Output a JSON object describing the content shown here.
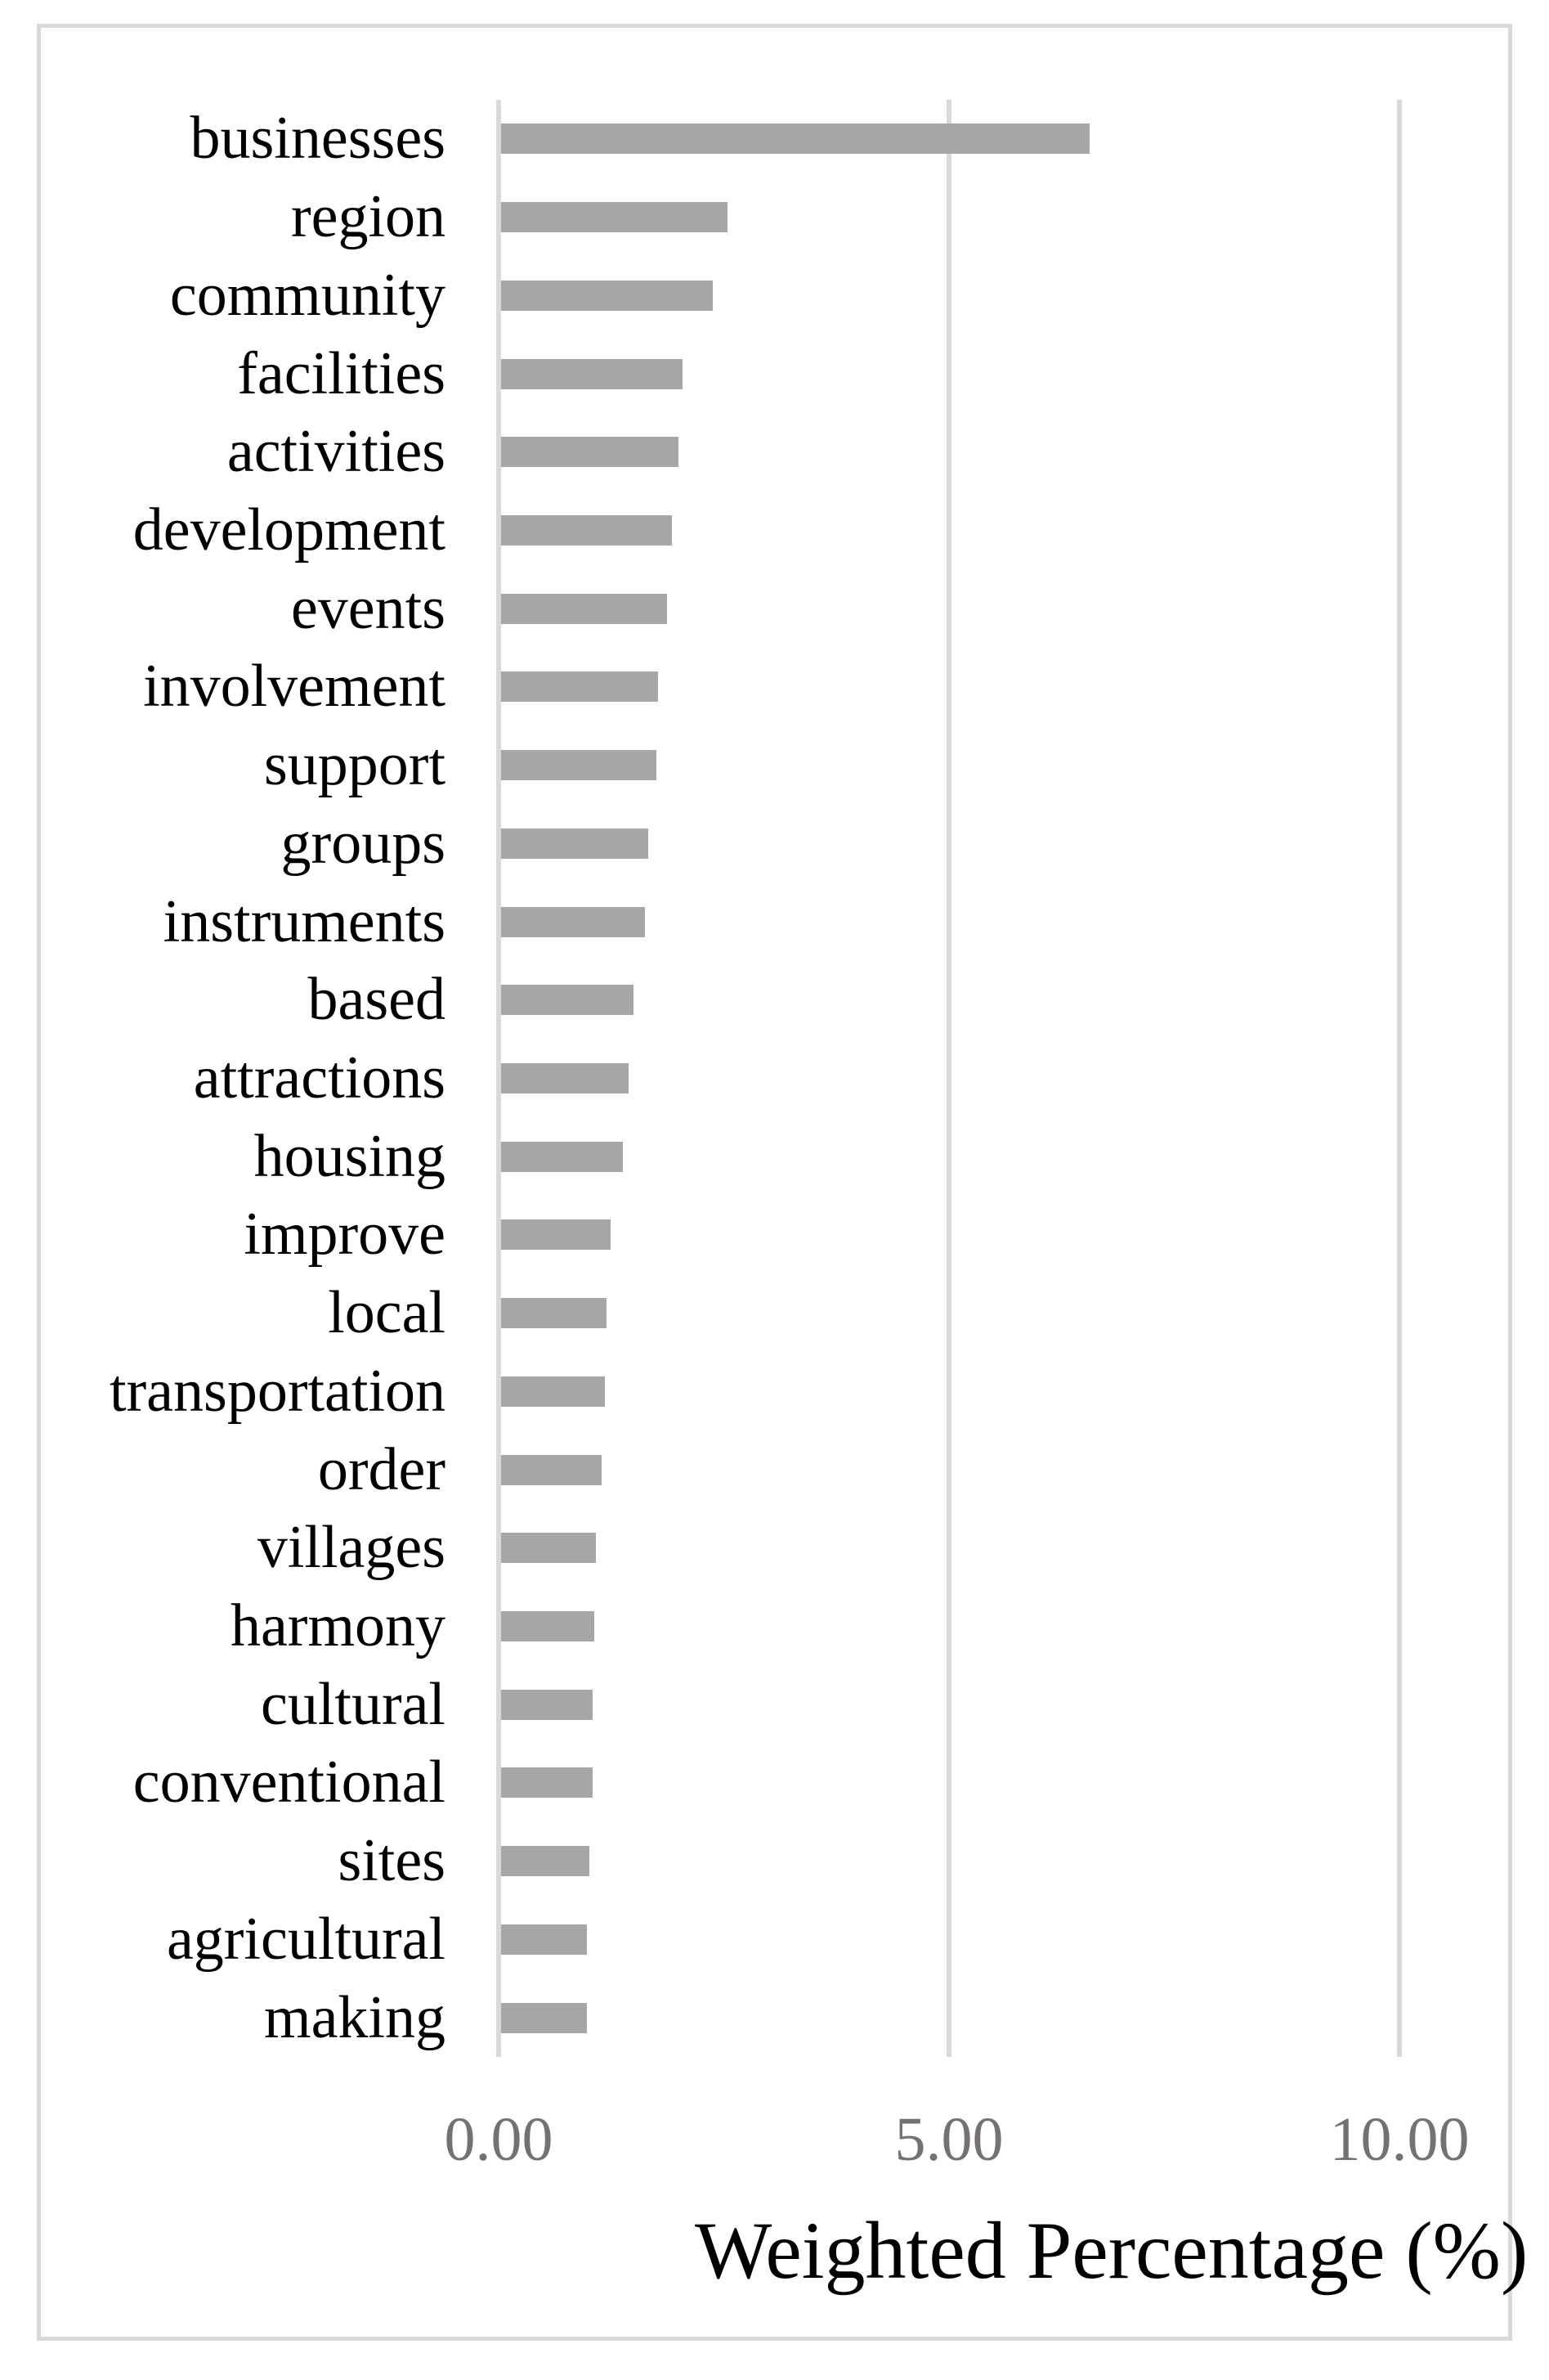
{
  "chart_data": {
    "type": "bar",
    "orientation": "horizontal",
    "title": "",
    "xlabel": "Weighted Percentage (%)",
    "ylabel": "",
    "categories": [
      "businesses",
      "region",
      "community",
      "facilities",
      "activities",
      "development",
      "events",
      "involvement",
      "support",
      "groups",
      "instruments",
      "based",
      "attractions",
      "housing",
      "improve",
      "local",
      "transportation",
      "order",
      "villages",
      "harmony",
      "cultural",
      "conventional",
      "sites",
      "agricultural",
      "making"
    ],
    "values": [
      6.53,
      2.51,
      2.35,
      2.01,
      1.97,
      1.9,
      1.84,
      1.74,
      1.72,
      1.63,
      1.6,
      1.47,
      1.42,
      1.35,
      1.22,
      1.17,
      1.15,
      1.12,
      1.05,
      1.03,
      1.02,
      1.02,
      0.98,
      0.95,
      0.95
    ],
    "xlim": [
      0,
      10
    ],
    "xticks": [
      0,
      5,
      10
    ],
    "xtick_labels": [
      "0.00",
      "5.00",
      "10.00"
    ],
    "grid": "vertical-gridlines-only",
    "legend": "none",
    "bar_color": "#a6a6a6",
    "gridline_color": "#d9d9d9",
    "tick_label_color": "#767171",
    "label_color": "#000000",
    "border_color": "#d9d9d9"
  }
}
